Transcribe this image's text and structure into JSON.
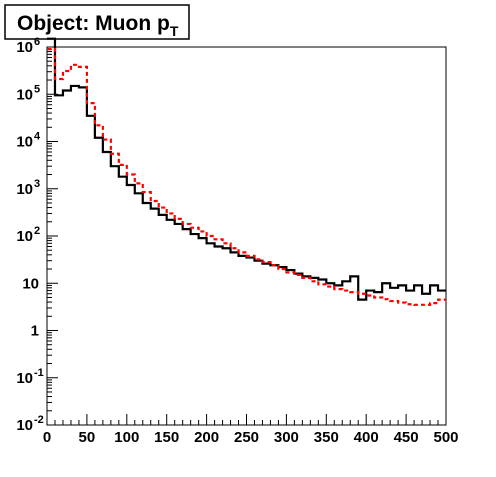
{
  "chart_data": {
    "type": "line",
    "title": "Object: Muon p",
    "title_subscript": "T",
    "xlabel": "",
    "ylabel": "",
    "xlim": [
      0,
      500
    ],
    "ylim": [
      0.01,
      1000000
    ],
    "y_scale": "log",
    "grid": false,
    "x_ticks": [
      0,
      50,
      100,
      150,
      200,
      250,
      300,
      350,
      400,
      450,
      500
    ],
    "y_ticks": [
      {
        "value": 0.01,
        "base": "10",
        "exp": "-2"
      },
      {
        "value": 0.1,
        "base": "10",
        "exp": "-1"
      },
      {
        "value": 1,
        "base": "1",
        "exp": ""
      },
      {
        "value": 10,
        "base": "10",
        "exp": ""
      },
      {
        "value": 100,
        "base": "10",
        "exp": "2"
      },
      {
        "value": 1000,
        "base": "10",
        "exp": "3"
      },
      {
        "value": 10000,
        "base": "10",
        "exp": "4"
      },
      {
        "value": 100000,
        "base": "10",
        "exp": "5"
      },
      {
        "value": 1000000,
        "base": "10",
        "exp": "6"
      }
    ],
    "bin_edges": [
      0,
      10,
      20,
      30,
      40,
      50,
      60,
      70,
      80,
      90,
      100,
      110,
      120,
      130,
      140,
      150,
      160,
      170,
      180,
      190,
      200,
      210,
      220,
      230,
      240,
      250,
      260,
      270,
      280,
      290,
      300,
      310,
      320,
      330,
      340,
      350,
      360,
      370,
      380,
      390,
      400,
      410,
      420,
      430,
      440,
      450,
      460,
      470,
      480,
      490,
      500
    ],
    "series": [
      {
        "color": "#000000",
        "style": "solid",
        "values": [
          1500000,
          95000,
          120000,
          150000,
          140000,
          35000,
          12000,
          6000,
          3000,
          1800,
          1200,
          800,
          500,
          380,
          280,
          220,
          180,
          140,
          110,
          90,
          70,
          60,
          55,
          45,
          38,
          35,
          30,
          26,
          24,
          22,
          19,
          16,
          14,
          13,
          12,
          10,
          9,
          11,
          14,
          4.5,
          7,
          6.5,
          10,
          8,
          9,
          7,
          9,
          6,
          9,
          7
        ]
      },
      {
        "color": "#ff0000",
        "style": "dashed",
        "values": [
          900000,
          210000,
          310000,
          420000,
          380000,
          65000,
          22000,
          11000,
          5500,
          3200,
          2000,
          1300,
          850,
          550,
          400,
          300,
          230,
          180,
          150,
          125,
          100,
          85,
          70,
          55,
          45,
          38,
          32,
          28,
          24,
          20,
          17,
          15,
          13,
          11,
          9.5,
          8.5,
          7.5,
          7,
          6.5,
          6,
          5.5,
          5,
          4.6,
          4.2,
          3.9,
          3.6,
          3.5,
          3.5,
          3.8,
          4.5
        ]
      }
    ]
  }
}
